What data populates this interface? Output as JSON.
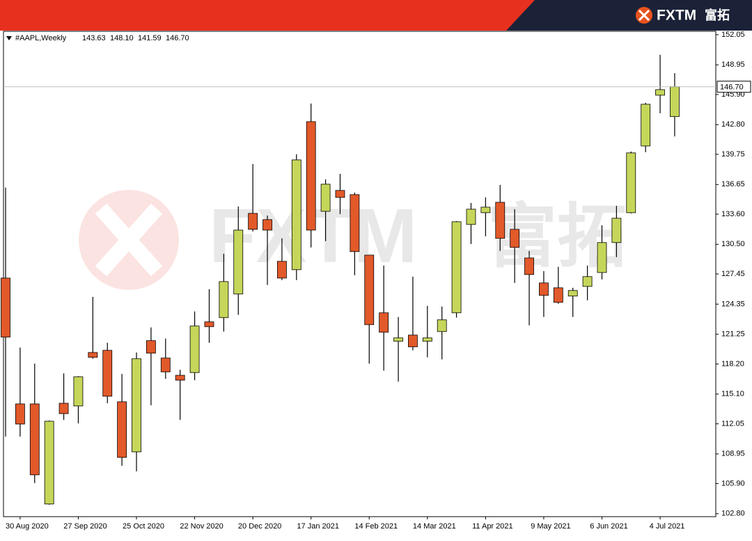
{
  "brand": "FXTM",
  "brand_cn": "富拓",
  "chart_data": {
    "type": "candlestick",
    "legend": {
      "symbol": "#AAPL,Weekly",
      "values": [
        "143.63",
        "148.10",
        "141.59",
        "146.70"
      ]
    },
    "categories": [
      null,
      "30 Aug 2020",
      null,
      null,
      null,
      "27 Sep 2020",
      null,
      null,
      null,
      "25 Oct 2020",
      null,
      null,
      null,
      "22 Nov 2020",
      null,
      null,
      null,
      "20 Dec 2020",
      null,
      null,
      null,
      "17 Jan 2021",
      null,
      null,
      null,
      "14 Feb 2021",
      null,
      null,
      null,
      "14 Mar 2021",
      null,
      null,
      null,
      "11 Apr 2021",
      null,
      null,
      null,
      "9 May 2021",
      null,
      null,
      null,
      "6 Jun 2021",
      null,
      null,
      null,
      "4 Jul 2021",
      null
    ],
    "open": [
      127.03,
      114.09,
      114.09,
      103.8,
      114.16,
      113.88,
      119.38,
      119.6,
      114.31,
      109.16,
      120.6,
      118.81,
      117.03,
      117.31,
      122.53,
      122.96,
      125.39,
      133.68,
      133.04,
      128.75,
      127.89,
      143.11,
      133.89,
      136.04,
      135.61,
      129.39,
      123.46,
      120.53,
      121.17,
      120.53,
      121.53,
      123.46,
      132.54,
      133.75,
      134.82,
      132.04,
      129.1,
      126.53,
      126.03,
      125.18,
      126.17,
      127.6,
      130.68,
      133.75,
      140.61,
      145.83,
      143.63
    ],
    "high": [
      136.33,
      119.88,
      118.24,
      112.38,
      117.24,
      116.95,
      125.1,
      120.38,
      117.17,
      119.38,
      121.96,
      120.81,
      117.6,
      123.6,
      125.89,
      129.53,
      134.39,
      138.75,
      133.46,
      131.11,
      139.76,
      144.97,
      137.18,
      137.75,
      135.82,
      129.39,
      128.32,
      123.03,
      127.18,
      124.17,
      124.1,
      132.89,
      134.75,
      135.32,
      136.61,
      134.11,
      129.82,
      127.75,
      128.18,
      126.03,
      128.32,
      132.46,
      134.46,
      140.04,
      145.05,
      149.98,
      148.1
    ],
    "low": [
      110.73,
      110.73,
      105.95,
      103.73,
      112.45,
      112.09,
      118.74,
      114.16,
      107.73,
      107.16,
      113.95,
      116.67,
      112.45,
      116.53,
      120.38,
      121.53,
      123.24,
      131.82,
      126.32,
      126.82,
      126.82,
      130.18,
      130.82,
      133.61,
      127.32,
      118.24,
      117.52,
      116.38,
      119.6,
      118.88,
      118.67,
      122.96,
      130.53,
      131.32,
      129.82,
      126.53,
      122.17,
      123.03,
      124.39,
      123.03,
      124.74,
      126.89,
      129.18,
      133.68,
      139.97,
      143.97,
      141.59
    ],
    "close": [
      120.96,
      112.02,
      106.8,
      112.31,
      113.09,
      116.88,
      118.88,
      114.88,
      108.59,
      118.74,
      119.31,
      117.38,
      116.53,
      122.1,
      122.03,
      126.67,
      131.96,
      132.04,
      131.96,
      127.03,
      139.18,
      131.96,
      136.68,
      135.32,
      129.75,
      122.24,
      121.46,
      120.88,
      119.96,
      120.88,
      122.74,
      132.82,
      134.11,
      134.32,
      131.11,
      130.18,
      127.39,
      125.25,
      124.53,
      125.75,
      127.18,
      130.68,
      133.18,
      139.9,
      144.9,
      146.4,
      146.7
    ],
    "up_color": "#c6d65a",
    "down_color": "#e2592a",
    "ylim": [
      102.5,
      152.4
    ],
    "yticks": [
      152.05,
      148.95,
      {
        "value": 145.9,
        "label": "145.90"
      },
      {
        "value": 142.8,
        "label": "142.80"
      },
      139.75,
      136.65,
      {
        "value": 133.6,
        "label": "133.60"
      },
      {
        "value": 130.5,
        "label": "130.50"
      },
      127.45,
      124.35,
      121.25,
      {
        "value": 118.2,
        "label": "118.20"
      },
      {
        "value": 115.1,
        "label": "115.10"
      },
      112.05,
      108.95,
      {
        "value": 105.9,
        "label": "105.90"
      },
      {
        "value": 102.8,
        "label": "102.80"
      }
    ],
    "current_price": {
      "value": 146.7,
      "label": "146.70"
    }
  }
}
